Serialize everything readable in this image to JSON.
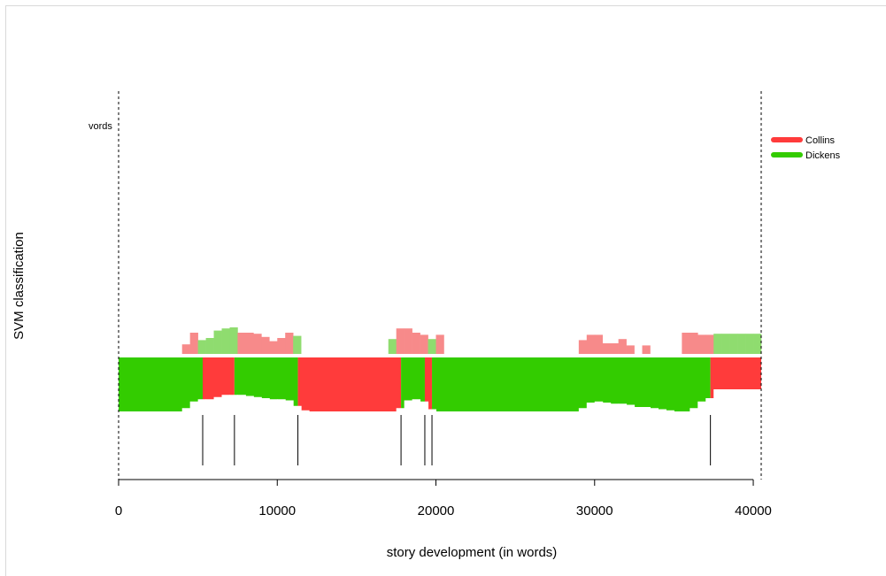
{
  "chart_data": {
    "type": "area",
    "title": "",
    "xlabel": "story development (in words)",
    "ylabel": "SVM classification",
    "xlim": [
      0,
      40500
    ],
    "x_ticks": [
      0,
      10000,
      20000,
      30000,
      40000
    ],
    "x_tick_labels": [
      "0",
      "10000",
      "20000",
      "30000",
      "40000"
    ],
    "corner_label": "vords",
    "legend": {
      "placement": "top-right",
      "entries": [
        {
          "name": "Collins",
          "color": "#ff3b3b"
        },
        {
          "name": "Dickens",
          "color": "#33cc00"
        }
      ]
    },
    "colors": {
      "Collins": "#ff3b3b",
      "Dickens": "#33cc00",
      "Collins_light": "#f78a8a",
      "Dickens_light": "#8fdc6f"
    },
    "dashed_boundaries": [
      0,
      40500
    ],
    "segments": [
      {
        "start": 0,
        "end": 5300,
        "author": "Dickens"
      },
      {
        "start": 5300,
        "end": 7300,
        "author": "Collins"
      },
      {
        "start": 7300,
        "end": 11300,
        "author": "Dickens"
      },
      {
        "start": 11300,
        "end": 17800,
        "author": "Collins"
      },
      {
        "start": 17800,
        "end": 19300,
        "author": "Dickens"
      },
      {
        "start": 19300,
        "end": 19750,
        "author": "Collins"
      },
      {
        "start": 19750,
        "end": 37300,
        "author": "Dickens"
      },
      {
        "start": 37300,
        "end": 40500,
        "author": "Collins"
      }
    ],
    "breakpoints": [
      5300,
      7300,
      11300,
      17800,
      19300,
      19750,
      37300
    ],
    "bottom_profile": {
      "author": "Dickens",
      "x": [
        0,
        500,
        1000,
        1500,
        2000,
        2500,
        3000,
        3500,
        4000,
        4500,
        5000,
        5500,
        6000,
        6500,
        7000,
        7500,
        8000,
        8500,
        9000,
        9500,
        10000,
        10500,
        11000,
        11500,
        12000,
        12500,
        13000,
        13500,
        14000,
        14500,
        15000,
        15500,
        16000,
        16500,
        17000,
        17500,
        18000,
        18500,
        19000,
        19500,
        20000,
        20500,
        21000,
        21500,
        22000,
        22500,
        23000,
        23500,
        24000,
        24500,
        25000,
        25500,
        26000,
        26500,
        27000,
        27500,
        28000,
        28500,
        29000,
        29500,
        30000,
        30500,
        31000,
        31500,
        32000,
        32500,
        33000,
        33500,
        34000,
        34500,
        35000,
        35500,
        36000,
        36500,
        37000,
        37500,
        38000,
        38500,
        39000,
        39500,
        40000
      ],
      "y": [
        1.0,
        1.0,
        1.0,
        1.0,
        1.0,
        1.0,
        1.0,
        1.0,
        0.85,
        0.55,
        0.45,
        0.45,
        0.35,
        0.25,
        0.25,
        0.25,
        0.3,
        0.35,
        0.4,
        0.45,
        0.45,
        0.5,
        0.75,
        0.95,
        1.0,
        1.0,
        1.0,
        1.0,
        1.0,
        1.0,
        1.0,
        1.0,
        1.0,
        1.0,
        1.0,
        0.85,
        0.5,
        0.45,
        0.55,
        0.9,
        1.0,
        1.0,
        1.0,
        1.0,
        1.0,
        1.0,
        1.0,
        1.0,
        1.0,
        1.0,
        1.0,
        1.0,
        1.0,
        1.0,
        1.0,
        1.0,
        1.0,
        1.0,
        0.85,
        0.6,
        0.55,
        0.6,
        0.65,
        0.65,
        0.7,
        0.8,
        0.8,
        0.85,
        0.9,
        0.95,
        1.0,
        1.0,
        0.85,
        0.55,
        0.4,
        0.0,
        0.0,
        0.0,
        0.0,
        0.0,
        0.0
      ]
    },
    "top_profile": {
      "x": [
        4000,
        4500,
        5000,
        5500,
        6000,
        6500,
        7000,
        7500,
        8000,
        8500,
        9000,
        9500,
        10000,
        10500,
        11000,
        17000,
        17500,
        18000,
        18500,
        19000,
        19500,
        20000,
        29000,
        29500,
        30000,
        30500,
        31000,
        31500,
        32000,
        33000,
        35500,
        36000,
        36500,
        37000,
        37500,
        38000,
        38500,
        39000,
        39500,
        40000
      ],
      "y": [
        0.45,
        1.0,
        0.65,
        0.75,
        1.1,
        1.2,
        1.25,
        1.0,
        1.0,
        0.95,
        0.8,
        0.6,
        0.75,
        1.0,
        0.85,
        0.7,
        1.2,
        1.2,
        1.0,
        0.9,
        0.7,
        0.9,
        0.65,
        0.9,
        0.9,
        0.5,
        0.5,
        0.7,
        0.4,
        0.4,
        1.0,
        1.0,
        0.9,
        0.9,
        0.95,
        0.95,
        0.95,
        0.95,
        0.95,
        0.95
      ],
      "authors": [
        "Collins",
        "Collins",
        "Dickens",
        "Dickens",
        "Dickens",
        "Dickens",
        "Dickens",
        "Collins",
        "Collins",
        "Collins",
        "Collins",
        "Collins",
        "Collins",
        "Collins",
        "Dickens",
        "Dickens",
        "Collins",
        "Collins",
        "Collins",
        "Collins",
        "Dickens",
        "Collins",
        "Collins",
        "Collins",
        "Collins",
        "Collins",
        "Collins",
        "Collins",
        "Collins",
        "Collins",
        "Collins",
        "Collins",
        "Collins",
        "Collins",
        "Dickens",
        "Dickens",
        "Dickens",
        "Dickens",
        "Dickens",
        "Dickens"
      ]
    }
  }
}
